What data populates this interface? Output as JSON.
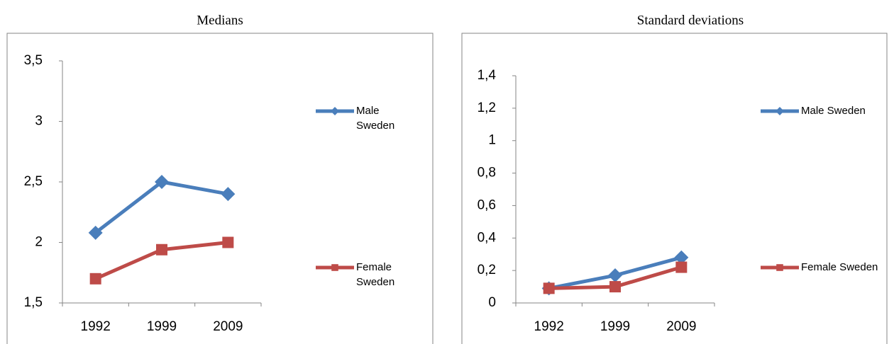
{
  "chart_data": [
    {
      "type": "line",
      "title": "Medians",
      "categories": [
        "1992",
        "1999",
        "2009"
      ],
      "series": [
        {
          "name": "Male Sweden",
          "color": "#4a7ebb",
          "marker": "diamond",
          "values": [
            2.08,
            2.5,
            2.4
          ]
        },
        {
          "name": "Female Sweden",
          "color": "#be4b48",
          "marker": "square",
          "values": [
            1.7,
            1.94,
            2.0
          ]
        }
      ],
      "ylim": [
        1.5,
        3.5
      ],
      "yticks": [
        {
          "value": 1.5,
          "label": "1,5"
        },
        2,
        {
          "value": 2.5,
          "label": "2,5"
        },
        3,
        {
          "value": 3.5,
          "label": "3,5"
        }
      ],
      "grid": false
    },
    {
      "type": "line",
      "title": "Standard deviations",
      "categories": [
        "1992",
        "1999",
        "2009"
      ],
      "series": [
        {
          "name": "Male Sweden",
          "color": "#4a7ebb",
          "marker": "diamond",
          "values": [
            0.09,
            0.17,
            0.28
          ]
        },
        {
          "name": "Female Sweden",
          "color": "#be4b48",
          "marker": "square",
          "values": [
            0.09,
            0.1,
            0.22
          ]
        }
      ],
      "ylim": [
        0,
        1.4
      ],
      "yticks": [
        0,
        {
          "value": 0.2,
          "label": "0,2"
        },
        {
          "value": 0.4,
          "label": "0,4"
        },
        {
          "value": 0.6,
          "label": "0,6"
        },
        {
          "value": 0.8,
          "label": "0,8"
        },
        1,
        {
          "value": 1.2,
          "label": "1,2"
        },
        {
          "value": 1.4,
          "label": "1,4"
        }
      ],
      "grid": false
    }
  ]
}
